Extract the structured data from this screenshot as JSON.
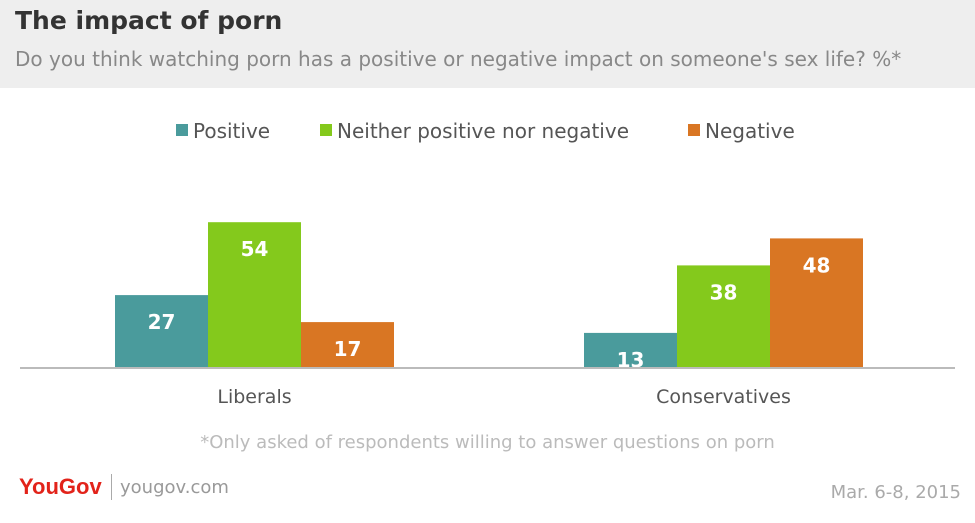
{
  "header": {
    "title": "The impact of porn",
    "subtitle": "Do you think watching porn has a positive or negative impact on someone's sex life? %*"
  },
  "chart_data": {
    "type": "bar",
    "categories": [
      "Liberals",
      "Conservatives"
    ],
    "series": [
      {
        "name": "Positive",
        "values": [
          27,
          13
        ],
        "color": "#4a9b9c"
      },
      {
        "name": "Neither positive nor negative",
        "values": [
          54,
          38
        ],
        "color": "#84c91c"
      },
      {
        "name": "Negative",
        "values": [
          17,
          48
        ],
        "color": "#d97623"
      }
    ],
    "ylim": [
      0,
      60
    ],
    "grid": false,
    "legend_position": "top-center",
    "data_labels": true
  },
  "footer": {
    "footnote": "*Only asked of respondents willing to answer questions on porn",
    "logo": "YouGov",
    "website": "yougov.com",
    "date": "Mar. 6-8, 2015"
  }
}
